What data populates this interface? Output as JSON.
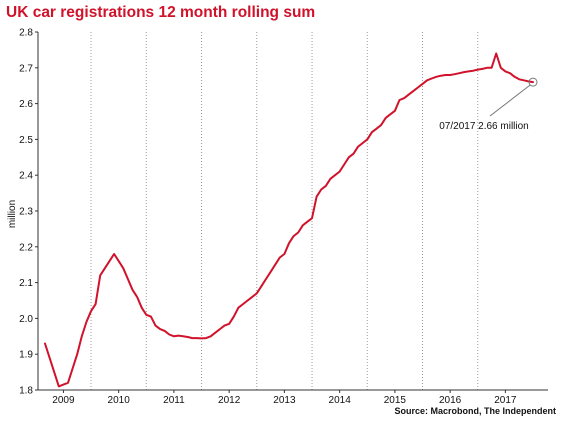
{
  "colors": {
    "series": "#d0122b",
    "title": "#d0122b",
    "grid": "#9a9a9a",
    "axis": "#333333",
    "text": "#111111"
  },
  "chart_data": {
    "type": "line",
    "title": "UK car registrations 12 month rolling sum",
    "ylabel": "million",
    "xlabel": "",
    "source": "Source: Macrobond, The Independent",
    "ylim": [
      1.8,
      2.8
    ],
    "xlim": [
      "2008-09",
      "2017-07"
    ],
    "y_ticks": [
      "1.8",
      "1.9",
      "2.0",
      "2.1",
      "2.2",
      "2.3",
      "2.4",
      "2.5",
      "2.6",
      "2.7",
      "2.8"
    ],
    "x_ticks": [
      {
        "label": "2009",
        "x": "2009-01"
      },
      {
        "label": "2010",
        "x": "2010-01"
      },
      {
        "label": "2011",
        "x": "2011-01"
      },
      {
        "label": "2012",
        "x": "2012-01"
      },
      {
        "label": "2013",
        "x": "2013-01"
      },
      {
        "label": "2014",
        "x": "2014-01"
      },
      {
        "label": "2015",
        "x": "2015-01"
      },
      {
        "label": "2016",
        "x": "2016-01"
      },
      {
        "label": "2017",
        "x": "2017-01"
      }
    ],
    "grid_x": [
      "2009-07",
      "2010-07",
      "2011-07",
      "2012-07",
      "2013-07",
      "2014-07",
      "2015-07",
      "2016-07"
    ],
    "grid": "vertical-dotted",
    "annotation": {
      "text": "07/2017 2.66 million",
      "x": "2017-07",
      "y": 2.66
    },
    "series": [
      {
        "x": [
          "2008-09",
          "2008-10",
          "2008-11",
          "2008-12",
          "2009-01",
          "2009-02",
          "2009-03",
          "2009-04",
          "2009-05",
          "2009-06",
          "2009-07",
          "2009-08",
          "2009-09",
          "2009-10",
          "2009-11",
          "2009-12",
          "2010-01",
          "2010-02",
          "2010-03",
          "2010-04",
          "2010-05",
          "2010-06",
          "2010-07",
          "2010-08",
          "2010-09",
          "2010-10",
          "2010-11",
          "2010-12",
          "2011-01",
          "2011-02",
          "2011-03",
          "2011-04",
          "2011-05",
          "2011-06",
          "2011-07",
          "2011-08",
          "2011-09",
          "2011-10",
          "2011-11",
          "2011-12",
          "2012-01",
          "2012-02",
          "2012-03",
          "2012-04",
          "2012-05",
          "2012-06",
          "2012-07",
          "2012-08",
          "2012-09",
          "2012-10",
          "2012-11",
          "2012-12",
          "2013-01",
          "2013-02",
          "2013-03",
          "2013-04",
          "2013-05",
          "2013-06",
          "2013-07",
          "2013-08",
          "2013-09",
          "2013-10",
          "2013-11",
          "2013-12",
          "2014-01",
          "2014-02",
          "2014-03",
          "2014-04",
          "2014-05",
          "2014-06",
          "2014-07",
          "2014-08",
          "2014-09",
          "2014-10",
          "2014-11",
          "2014-12",
          "2015-01",
          "2015-02",
          "2015-03",
          "2015-04",
          "2015-05",
          "2015-06",
          "2015-07",
          "2015-08",
          "2015-09",
          "2015-10",
          "2015-11",
          "2015-12",
          "2016-01",
          "2016-02",
          "2016-03",
          "2016-04",
          "2016-05",
          "2016-06",
          "2016-07",
          "2016-08",
          "2016-09",
          "2016-10",
          "2016-11",
          "2016-12",
          "2017-01",
          "2017-02",
          "2017-03",
          "2017-04",
          "2017-05",
          "2017-06",
          "2017-07"
        ],
        "values": [
          1.93,
          1.89,
          1.85,
          1.81,
          1.815,
          1.82,
          1.86,
          1.9,
          1.95,
          1.99,
          2.02,
          2.04,
          2.12,
          2.14,
          2.16,
          2.18,
          2.16,
          2.14,
          2.11,
          2.08,
          2.06,
          2.03,
          2.01,
          2.005,
          1.98,
          1.97,
          1.965,
          1.955,
          1.95,
          1.952,
          1.95,
          1.948,
          1.945,
          1.945,
          1.944,
          1.945,
          1.95,
          1.96,
          1.97,
          1.98,
          1.985,
          2.005,
          2.03,
          2.04,
          2.05,
          2.06,
          2.07,
          2.09,
          2.11,
          2.13,
          2.15,
          2.17,
          2.18,
          2.21,
          2.23,
          2.24,
          2.26,
          2.27,
          2.28,
          2.34,
          2.36,
          2.37,
          2.39,
          2.4,
          2.41,
          2.43,
          2.45,
          2.46,
          2.48,
          2.49,
          2.5,
          2.52,
          2.53,
          2.54,
          2.56,
          2.57,
          2.58,
          2.61,
          2.615,
          2.625,
          2.635,
          2.645,
          2.655,
          2.665,
          2.67,
          2.675,
          2.678,
          2.68,
          2.68,
          2.682,
          2.685,
          2.688,
          2.69,
          2.692,
          2.695,
          2.697,
          2.7,
          2.7,
          2.74,
          2.7,
          2.69,
          2.685,
          2.675,
          2.668,
          2.665,
          2.662,
          2.66
        ]
      }
    ]
  }
}
